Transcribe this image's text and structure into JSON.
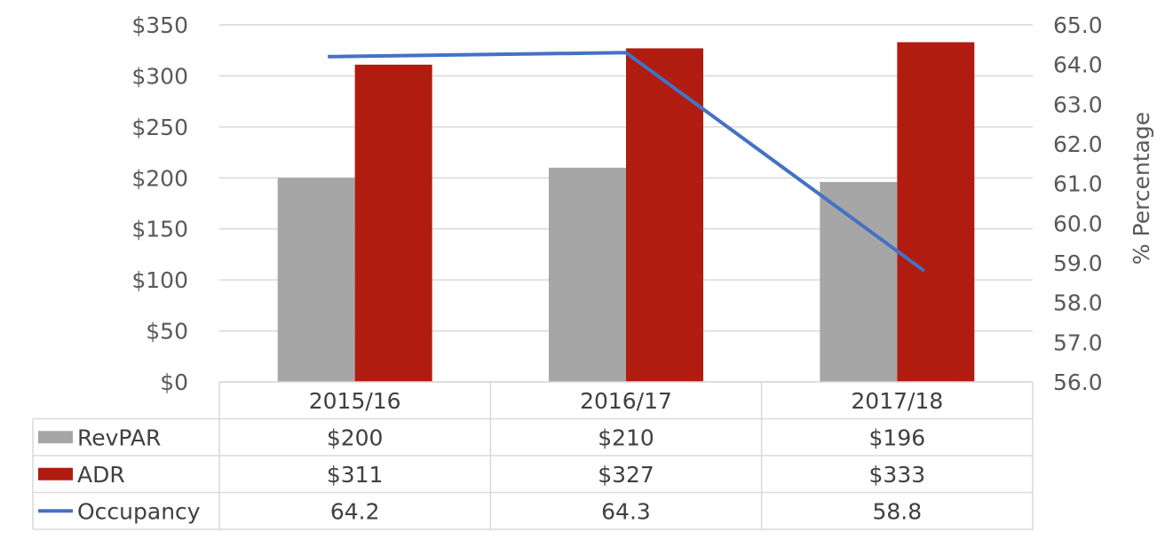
{
  "chart_data": {
    "type": "bar",
    "categories": [
      "2015/16",
      "2016/17",
      "2017/18"
    ],
    "series": [
      {
        "name": "RevPAR",
        "type": "bar",
        "axis": "left",
        "values": [
          200,
          210,
          196
        ],
        "labels": [
          "$200",
          "$210",
          "$196"
        ],
        "color": "#a6a6a6"
      },
      {
        "name": "ADR",
        "type": "bar",
        "axis": "left",
        "values": [
          311,
          327,
          333
        ],
        "labels": [
          "$311",
          "$327",
          "$333"
        ],
        "color": "#b01c10"
      },
      {
        "name": "Occupancy",
        "type": "line",
        "axis": "right",
        "values": [
          64.2,
          64.3,
          58.8
        ],
        "labels": [
          "64.2",
          "64.3",
          "58.8"
        ],
        "color": "#4472c4"
      }
    ],
    "y_left": {
      "range": [
        0,
        350
      ],
      "ticks": [
        "$0",
        "$50",
        "$100",
        "$150",
        "$200",
        "$250",
        "$300",
        "$350"
      ],
      "label": ""
    },
    "y_right": {
      "range": [
        56.0,
        65.0
      ],
      "ticks": [
        "56.0",
        "57.0",
        "58.0",
        "59.0",
        "60.0",
        "61.0",
        "62.0",
        "63.0",
        "64.0",
        "65.0"
      ],
      "label": "% Percentage"
    },
    "grid": true,
    "legend": "data-table"
  }
}
